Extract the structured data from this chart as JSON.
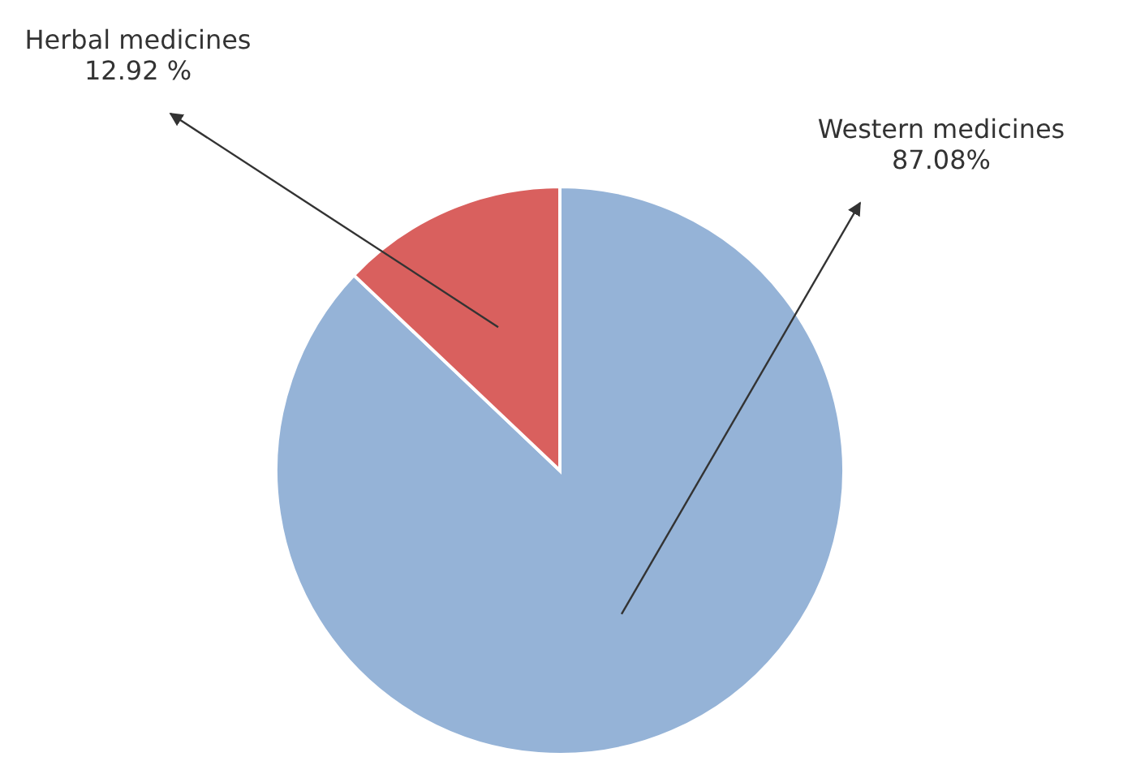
{
  "chart_data": {
    "type": "pie",
    "categories": [
      "Western medicines",
      "Herbal medicines"
    ],
    "values": [
      87.08,
      12.92
    ],
    "colors": [
      "#95b3d7",
      "#d9605e"
    ],
    "value_labels": [
      "87.08%",
      "12.92 %"
    ]
  }
}
